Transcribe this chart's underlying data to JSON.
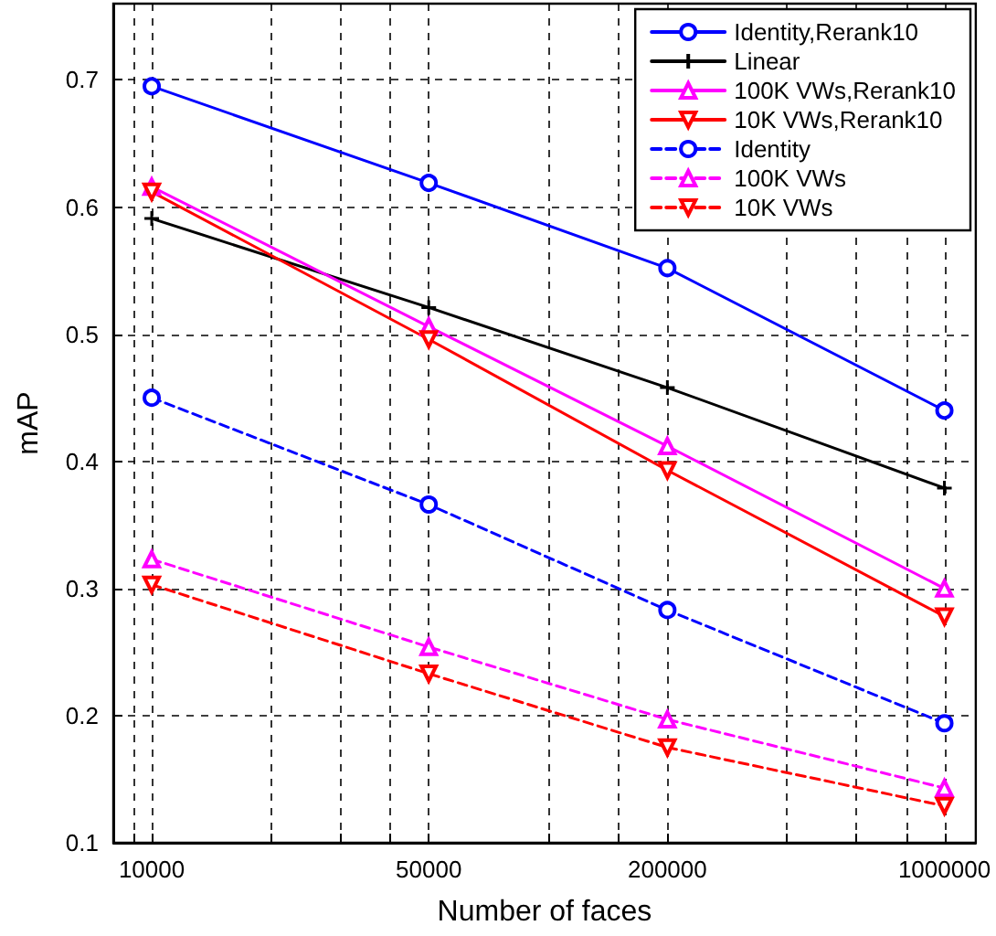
{
  "chart_data": {
    "type": "line",
    "xlabel": "Number of faces",
    "ylabel": "mAP",
    "x": [
      10000,
      50000,
      200000,
      1000000
    ],
    "log": "x",
    "xlim": [
      8000,
      1200000
    ],
    "xticks": [
      {
        "value": 9000,
        "label": null
      },
      10000,
      {
        "value": 20000,
        "label": null
      },
      {
        "value": 30000,
        "label": null
      },
      {
        "value": 40000,
        "label": null
      },
      50000,
      {
        "value": 100000,
        "label": null
      },
      {
        "value": 150000,
        "label": null
      },
      200000,
      {
        "value": 400000,
        "label": null
      },
      {
        "value": 600000,
        "label": null
      },
      {
        "value": 800000,
        "label": null
      },
      1000000
    ],
    "ylim": [
      0.1,
      0.76
    ],
    "yticks": [
      0.1,
      0.2,
      0.3,
      0.4,
      0.5,
      0.6,
      0.7
    ],
    "grid": true,
    "legend": "top right",
    "series": [
      {
        "name": "Identity,Rerank10",
        "color": "#0000ff",
        "marker": "circle",
        "line_style": "solid",
        "values": [
          0.695,
          0.619,
          0.552,
          0.44
        ]
      },
      {
        "name": "Linear",
        "color": "#000000",
        "marker": "cross",
        "line_style": "solid",
        "values": [
          0.591,
          0.521,
          0.458,
          0.379
        ]
      },
      {
        "name": "100K VWs,Rerank10",
        "color": "#ff00ff",
        "marker": "triangle",
        "line_style": "solid",
        "values": [
          0.616,
          0.506,
          0.412,
          0.3
        ]
      },
      {
        "name": "10K VWs,Rerank10",
        "color": "#ff0000",
        "marker": "triangle-down",
        "line_style": "solid",
        "values": [
          0.612,
          0.496,
          0.393,
          0.278
        ]
      },
      {
        "name": "Identity",
        "color": "#0000ff",
        "marker": "circle",
        "line_style": "dashed",
        "values": [
          0.45,
          0.366,
          0.283,
          0.194
        ]
      },
      {
        "name": "100K VWs",
        "color": "#ff00ff",
        "marker": "triangle",
        "line_style": "dashed",
        "values": [
          0.323,
          0.254,
          0.197,
          0.143
        ]
      },
      {
        "name": "10K VWs",
        "color": "#ff0000",
        "marker": "triangle-down",
        "line_style": "dashed",
        "values": [
          0.303,
          0.233,
          0.175,
          0.129
        ]
      }
    ]
  }
}
